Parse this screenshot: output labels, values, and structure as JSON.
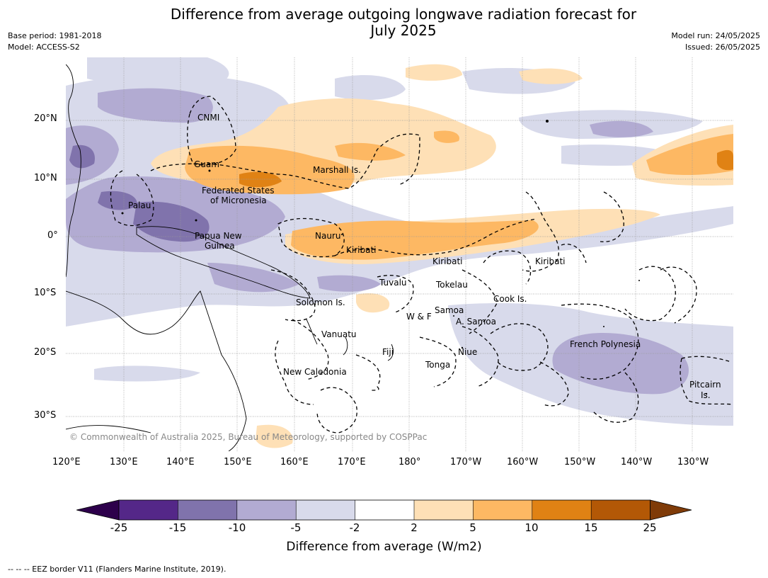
{
  "title": {
    "line1": "Difference from average outgoing longwave radiation forecast for",
    "line2": "July 2025"
  },
  "meta": {
    "base_period": "Base period: 1981-2018",
    "model": "Model: ACCESS-S2",
    "model_run": "Model run: 24/05/2025",
    "issued": "Issued: 26/05/2025"
  },
  "copyright": "© Commonwealth of Australia 2025, Bureau of Meteorology, supported by COSPPac",
  "map": {
    "lat_ticks": [
      "20°N",
      "10°N",
      "0°",
      "10°S",
      "20°S",
      "30°S"
    ],
    "lon_ticks": [
      "120°E",
      "130°E",
      "140°E",
      "150°E",
      "160°E",
      "170°E",
      "180°",
      "170°W",
      "160°W",
      "150°W",
      "140°W",
      "130°W"
    ],
    "places": {
      "cnmi": "CNMI",
      "guam": "Guam",
      "marshall": "Marshall Is.",
      "fsm1": "Federated States",
      "fsm2": "of Micronesia",
      "palau": "Palau",
      "png1": "Papua New",
      "png2": "Guinea",
      "nauru": "Nauru",
      "kiribati1": "Kiribati",
      "kiribati2": "Kiribati",
      "kiribati3": "Kiribati",
      "tuvalu": "Tuvalu",
      "tokelau": "Tokelau",
      "cook": "Cook Is.",
      "solomon": "Solomon Is.",
      "wf": "W & F",
      "samoa": "Samoa",
      "asamoa": "A. Samoa",
      "vanuatu": "Vanuatu",
      "fiji": "Fiji",
      "niue": "Niue",
      "tonga": "Tonga",
      "frpoly": "French Polynesia",
      "newcal": "New Caledonia",
      "pitcairn1": "Pitcairn",
      "pitcairn2": "Is."
    }
  },
  "colorbar": {
    "title": "Difference from average (W/m2)",
    "labels": [
      "-25",
      "-15",
      "-10",
      "-5",
      "-2",
      "2",
      "5",
      "10",
      "15",
      "25"
    ],
    "colors": {
      "below_min": "#2d004b",
      "c1": "#542788",
      "c2": "#8073ac",
      "c3": "#b2abd2",
      "c4": "#d8daeb",
      "c5": "#ffffff",
      "c6": "#fee0b6",
      "c7": "#fdb863",
      "c8": "#e08214",
      "c9": "#b35806",
      "above_max": "#7f3b08"
    }
  },
  "footer": "--  --  -- EEZ border V11 (Flanders Marine Institute, 2019)."
}
